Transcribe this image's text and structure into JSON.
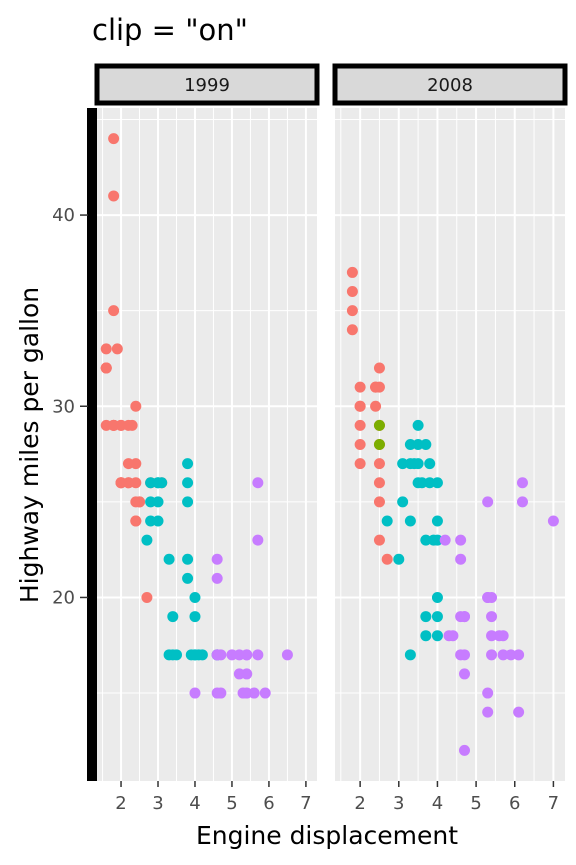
{
  "chart_data": {
    "type": "scatter",
    "title": "clip = \"on\"",
    "xlabel": "Engine displacement",
    "ylabel": "Highway miles per gallon",
    "xlim": [
      1.35,
      7.3
    ],
    "ylim": [
      10.4,
      45.6
    ],
    "x_ticks": [
      2,
      3,
      4,
      5,
      6,
      7
    ],
    "y_ticks": [
      20,
      30,
      40
    ],
    "grid": true,
    "legend": "none",
    "colors": {
      "f": "#F8766D",
      "4": "#00BFC4",
      "r": "#C77CFF",
      "green": "#7CAE00",
      "panel": "#EBEBEB",
      "strip": "#D9D9D9"
    },
    "panels": [
      {
        "label": "1999",
        "series": [
          {
            "color": "#F8766D",
            "points": [
              [
                1.8,
                29
              ],
              [
                1.8,
                29
              ],
              [
                2.0,
                29
              ],
              [
                2.8,
                26
              ],
              [
                2.4,
                27
              ],
              [
                2.4,
                30
              ],
              [
                1.6,
                33
              ],
              [
                1.6,
                32
              ],
              [
                1.6,
                32
              ],
              [
                1.6,
                29
              ],
              [
                1.6,
                32
              ],
              [
                1.8,
                44
              ],
              [
                1.8,
                41
              ],
              [
                1.8,
                35
              ],
              [
                1.8,
                29
              ],
              [
                2.0,
                26
              ],
              [
                2.0,
                26
              ],
              [
                2.2,
                26
              ],
              [
                2.2,
                27
              ],
              [
                2.2,
                26
              ],
              [
                2.4,
                24
              ],
              [
                2.4,
                24
              ],
              [
                2.4,
                26
              ],
              [
                2.5,
                25
              ],
              [
                2.7,
                20
              ],
              [
                2.0,
                29
              ],
              [
                2.2,
                29
              ],
              [
                2.3,
                29
              ],
              [
                1.9,
                33
              ],
              [
                2.0,
                26
              ],
              [
                3.1,
                26
              ],
              [
                2.5,
                25
              ],
              [
                2.4,
                25
              ]
            ]
          },
          {
            "color": "#00BFC4",
            "points": [
              [
                2.8,
                25
              ],
              [
                2.8,
                24
              ],
              [
                3.3,
                22
              ],
              [
                3.8,
                21
              ],
              [
                3.8,
                22
              ],
              [
                3.8,
                25
              ],
              [
                3.0,
                26
              ],
              [
                3.0,
                24
              ],
              [
                3.4,
                17
              ],
              [
                3.4,
                19
              ],
              [
                4.0,
                20
              ],
              [
                4.0,
                19
              ],
              [
                4.0,
                17
              ],
              [
                4.6,
                17
              ],
              [
                4.6,
                17
              ],
              [
                3.8,
                27
              ],
              [
                2.8,
                26
              ],
              [
                3.0,
                25
              ],
              [
                2.7,
                23
              ],
              [
                3.0,
                26
              ],
              [
                3.3,
                17
              ],
              [
                3.9,
                17
              ],
              [
                4.0,
                17
              ],
              [
                4.1,
                17
              ],
              [
                3.8,
                26
              ],
              [
                3.1,
                26
              ],
              [
                3.5,
                17
              ],
              [
                4.2,
                17
              ]
            ]
          },
          {
            "color": "#C77CFF",
            "points": [
              [
                4.6,
                17
              ],
              [
                5.4,
                16
              ],
              [
                5.4,
                15
              ],
              [
                5.7,
                23
              ],
              [
                5.7,
                26
              ],
              [
                6.5,
                17
              ],
              [
                4.0,
                15
              ],
              [
                4.6,
                17
              ],
              [
                4.6,
                15
              ],
              [
                4.6,
                21
              ],
              [
                4.6,
                22
              ],
              [
                5.4,
                17
              ],
              [
                5.0,
                17
              ],
              [
                5.2,
                17
              ],
              [
                5.3,
                15
              ],
              [
                5.6,
                15
              ],
              [
                5.9,
                15
              ],
              [
                4.7,
                15
              ],
              [
                4.7,
                17
              ],
              [
                5.2,
                16
              ],
              [
                5.7,
                17
              ],
              [
                5.4,
                17
              ]
            ]
          }
        ]
      },
      {
        "label": "2008",
        "series": [
          {
            "color": "#F8766D",
            "points": [
              [
                1.8,
                37
              ],
              [
                1.8,
                35
              ],
              [
                1.8,
                36
              ],
              [
                1.8,
                34
              ],
              [
                2.0,
                31
              ],
              [
                2.0,
                30
              ],
              [
                2.0,
                28
              ],
              [
                2.0,
                27
              ],
              [
                2.0,
                29
              ],
              [
                2.4,
                31
              ],
              [
                2.5,
                26
              ],
              [
                2.5,
                27
              ],
              [
                2.5,
                32
              ],
              [
                2.5,
                31
              ],
              [
                2.5,
                28
              ],
              [
                2.5,
                23
              ],
              [
                2.5,
                25
              ],
              [
                2.4,
                30
              ],
              [
                2.7,
                22
              ],
              [
                2.5,
                29
              ],
              [
                2.4,
                31
              ],
              [
                2.0,
                30
              ]
            ]
          },
          {
            "color": "#7CAE00",
            "points": [
              [
                2.5,
                29
              ],
              [
                2.5,
                28
              ]
            ]
          },
          {
            "color": "#00BFC4",
            "points": [
              [
                2.7,
                24
              ],
              [
                3.0,
                22
              ],
              [
                3.1,
                27
              ],
              [
                3.3,
                28
              ],
              [
                3.3,
                24
              ],
              [
                3.5,
                27
              ],
              [
                3.5,
                29
              ],
              [
                3.5,
                26
              ],
              [
                3.7,
                18
              ],
              [
                3.7,
                19
              ],
              [
                3.7,
                23
              ],
              [
                3.7,
                28
              ],
              [
                3.9,
                23
              ],
              [
                4.0,
                20
              ],
              [
                4.0,
                19
              ],
              [
                4.0,
                26
              ],
              [
                4.0,
                23
              ],
              [
                4.0,
                18
              ],
              [
                3.3,
                17
              ],
              [
                3.8,
                26
              ],
              [
                3.5,
                28
              ],
              [
                3.1,
                25
              ],
              [
                3.4,
                27
              ],
              [
                3.6,
                26
              ],
              [
                4.0,
                24
              ],
              [
                3.8,
                27
              ],
              [
                3.3,
                27
              ]
            ]
          },
          {
            "color": "#C77CFF",
            "points": [
              [
                4.2,
                23
              ],
              [
                4.4,
                18
              ],
              [
                4.6,
                23
              ],
              [
                4.6,
                22
              ],
              [
                4.7,
                19
              ],
              [
                4.7,
                16
              ],
              [
                4.7,
                17
              ],
              [
                4.7,
                12
              ],
              [
                5.3,
                25
              ],
              [
                5.3,
                20
              ],
              [
                5.3,
                20
              ],
              [
                5.4,
                19
              ],
              [
                5.4,
                18
              ],
              [
                5.6,
                18
              ],
              [
                5.7,
                18
              ],
              [
                6.1,
                17
              ],
              [
                6.2,
                26
              ],
              [
                6.2,
                25
              ],
              [
                7.0,
                24
              ],
              [
                5.3,
                15
              ],
              [
                5.3,
                14
              ],
              [
                5.7,
                17
              ],
              [
                6.1,
                14
              ],
              [
                4.6,
                17
              ],
              [
                4.6,
                19
              ],
              [
                4.7,
                19
              ],
              [
                5.4,
                17
              ],
              [
                5.4,
                20
              ],
              [
                5.9,
                17
              ],
              [
                4.3,
                18
              ]
            ]
          }
        ]
      }
    ]
  }
}
